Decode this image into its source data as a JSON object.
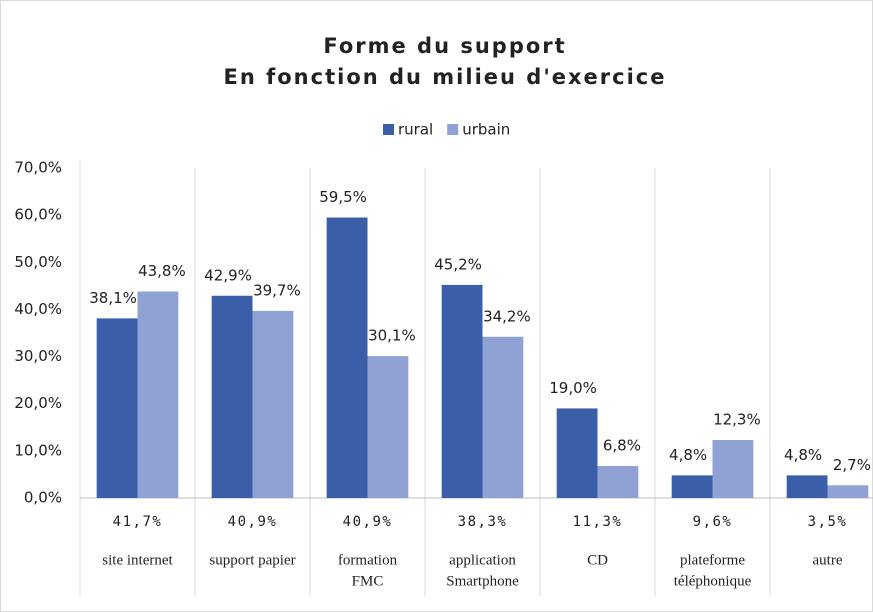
{
  "chart_data": {
    "type": "bar",
    "title": [
      "Forme du support",
      "En fonction du milieu d'exercice"
    ],
    "categories": [
      [
        "site internet"
      ],
      [
        "support papier"
      ],
      [
        "formation",
        "FMC"
      ],
      [
        "application",
        "Smartphone"
      ],
      [
        "CD"
      ],
      [
        "plateforme",
        "téléphonique"
      ],
      [
        "autre"
      ]
    ],
    "series": [
      {
        "name": "rural",
        "color": "#3b5ea9",
        "values": [
          38.1,
          42.9,
          59.5,
          45.2,
          19.0,
          4.8,
          4.8
        ],
        "value_labels": [
          "38,1%",
          "42,9%",
          "59,5%",
          "45,2%",
          "19,0%",
          "4,8%",
          "4,8%"
        ]
      },
      {
        "name": "urbain",
        "color": "#8fa2d3",
        "values": [
          43.8,
          39.7,
          30.1,
          34.2,
          6.8,
          12.3,
          2.7
        ],
        "value_labels": [
          "43,8%",
          "39,7%",
          "30,1%",
          "34,2%",
          "6,8%",
          "12,3%",
          "2,7%"
        ]
      }
    ],
    "overall": {
      "values": [
        41.7,
        40.9,
        40.9,
        38.3,
        11.3,
        9.6,
        3.5
      ],
      "value_labels": [
        "41,7%",
        "40,9%",
        "40,9%",
        "38,3%",
        "11,3%",
        "9,6%",
        "3,5%"
      ]
    },
    "ylim": [
      0,
      70
    ],
    "yticks": [
      {
        "value": 0,
        "label": "0,0%"
      },
      {
        "value": 10,
        "label": "10,0%"
      },
      {
        "value": 20,
        "label": "20,0%"
      },
      {
        "value": 30,
        "label": "30,0%"
      },
      {
        "value": 40,
        "label": "40,0%"
      },
      {
        "value": 50,
        "label": "50,0%"
      },
      {
        "value": 60,
        "label": "60,0%"
      },
      {
        "value": 70,
        "label": "70,0%"
      }
    ],
    "grid": false,
    "legend": "top"
  }
}
